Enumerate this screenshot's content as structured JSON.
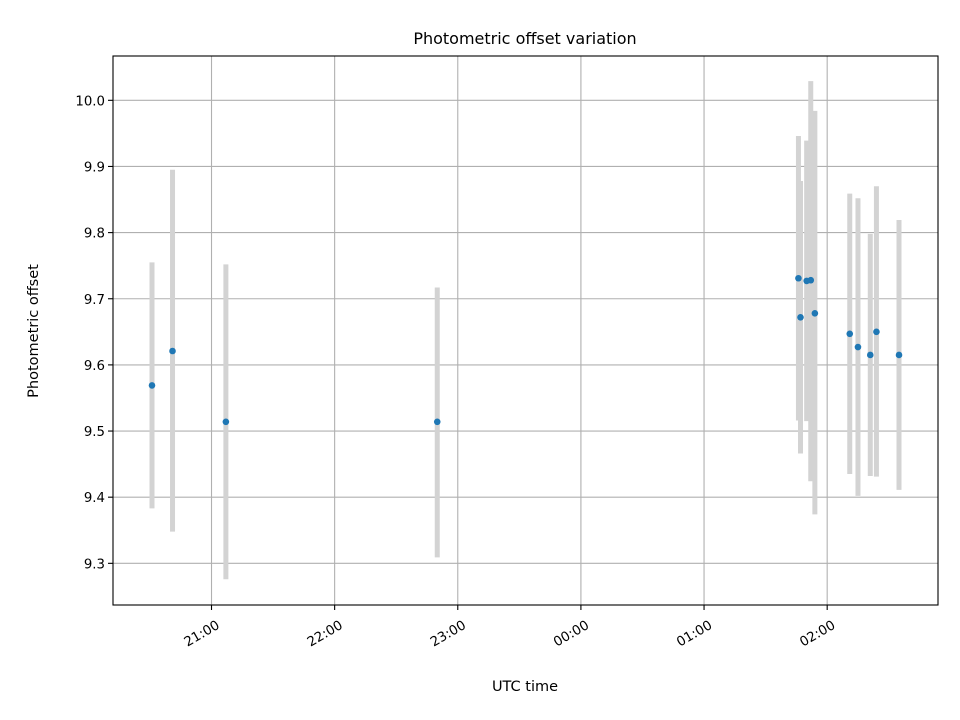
{
  "chart_data": {
    "type": "scatter",
    "title": "Photometric offset variation",
    "xlabel": "UTC time",
    "ylabel": "Photometric offset",
    "x_axis_kind": "time",
    "xlim": [
      "20:12",
      "02:54"
    ],
    "ylim": [
      9.237,
      10.067
    ],
    "xticks": [
      {
        "time": "21:00",
        "label": "21:00"
      },
      {
        "time": "22:00",
        "label": "22:00"
      },
      {
        "time": "23:00",
        "label": "23:00"
      },
      {
        "time": "24:00",
        "label": "00:00"
      },
      {
        "time": "25:00",
        "label": "01:00"
      },
      {
        "time": "26:00",
        "label": "02:00"
      }
    ],
    "yticks": [
      9.3,
      9.4,
      9.5,
      9.6,
      9.7,
      9.8,
      9.9,
      10.0
    ],
    "ytick_labels": [
      "9.3",
      "9.4",
      "9.5",
      "9.6",
      "9.7",
      "9.8",
      "9.9",
      "10.0"
    ],
    "grid": true,
    "colors": {
      "point": "#1f77b4",
      "errorbar": "#d3d3d3",
      "grid": "#b0b0b0",
      "axes": "#000000"
    },
    "series": [
      {
        "points": [
          {
            "x": "20:31",
            "y": 9.569,
            "ylow": 9.383,
            "yhigh": 9.755
          },
          {
            "x": "20:41",
            "y": 9.621,
            "ylow": 9.348,
            "yhigh": 9.895
          },
          {
            "x": "21:07",
            "y": 9.514,
            "ylow": 9.276,
            "yhigh": 9.752
          },
          {
            "x": "22:50",
            "y": 9.514,
            "ylow": 9.309,
            "yhigh": 9.717
          },
          {
            "x": "01:46",
            "y": 9.731,
            "ylow": 9.516,
            "yhigh": 9.946
          },
          {
            "x": "01:47",
            "y": 9.672,
            "ylow": 9.466,
            "yhigh": 9.878
          },
          {
            "x": "01:50",
            "y": 9.727,
            "ylow": 9.515,
            "yhigh": 9.939
          },
          {
            "x": "01:52",
            "y": 9.728,
            "ylow": 9.424,
            "yhigh": 10.029
          },
          {
            "x": "01:54",
            "y": 9.678,
            "ylow": 9.374,
            "yhigh": 9.984
          },
          {
            "x": "02:11",
            "y": 9.647,
            "ylow": 9.435,
            "yhigh": 9.859
          },
          {
            "x": "02:15",
            "y": 9.627,
            "ylow": 9.402,
            "yhigh": 9.852
          },
          {
            "x": "02:21",
            "y": 9.615,
            "ylow": 9.432,
            "yhigh": 9.798
          },
          {
            "x": "02:24",
            "y": 9.65,
            "ylow": 9.431,
            "yhigh": 9.87
          },
          {
            "x": "02:35",
            "y": 9.615,
            "ylow": 9.411,
            "yhigh": 9.819
          }
        ]
      }
    ]
  }
}
